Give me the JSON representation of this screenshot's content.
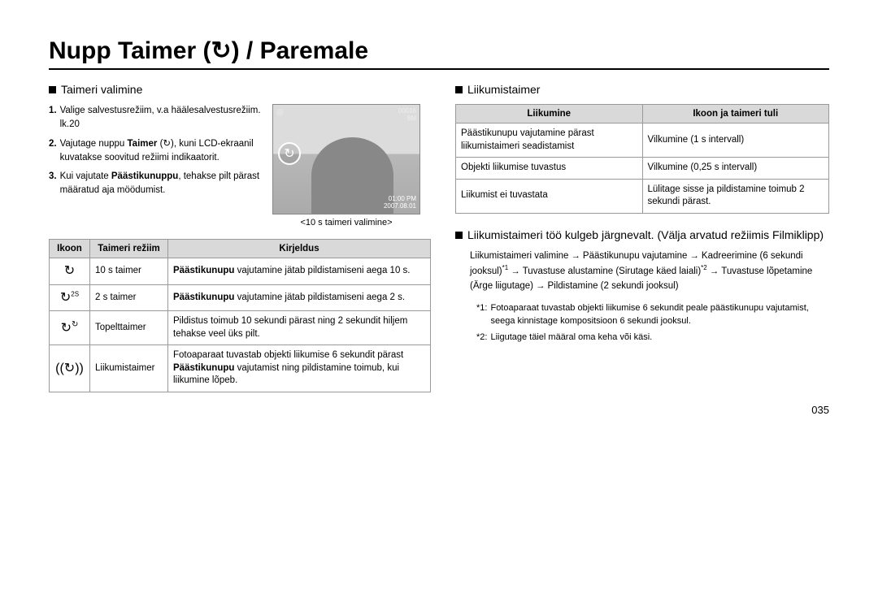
{
  "page_title": "Nupp Taimer (↻) / Paremale",
  "page_number": "035",
  "left": {
    "section_title": "Taimeri valimine",
    "instructions": [
      {
        "num": "1.",
        "text_parts": [
          {
            "t": "Valige salvestusrežiim, v.a häälesalvestusrežiim. lk.20",
            "b": false
          }
        ]
      },
      {
        "num": "2.",
        "text_parts": [
          {
            "t": "Vajutage nuppu ",
            "b": false
          },
          {
            "t": "Taimer",
            "b": true
          },
          {
            "t": " (↻), kuni LCD-ekraanil kuvatakse soovitud režiimi indikaatorit.",
            "b": false
          }
        ]
      },
      {
        "num": "3.",
        "text_parts": [
          {
            "t": "Kui vajutate ",
            "b": false
          },
          {
            "t": "Päästikunuppu",
            "b": true
          },
          {
            "t": ", tehakse pilt pärast määratud aja möödumist.",
            "b": false
          }
        ]
      }
    ],
    "photo_caption": "<10 s taimeri valimine>",
    "photo_overlay": {
      "top_right_1": "00016",
      "top_right_2": "8M",
      "time": "01:00 PM",
      "date": "2007.08.01"
    },
    "table": {
      "columns": [
        "Ikoon",
        "Taimeri režiim",
        "Kirjeldus"
      ],
      "rows": [
        {
          "icon_type": "timer10",
          "mode": "10 s taimer",
          "desc_parts": [
            {
              "t": "Päästikunupu",
              "b": true
            },
            {
              "t": " vajutamine jätab pildistamiseni aega 10 s.",
              "b": false
            }
          ]
        },
        {
          "icon_type": "timer2",
          "mode": "2 s taimer",
          "desc_parts": [
            {
              "t": "Päästikunupu",
              "b": true
            },
            {
              "t": " vajutamine jätab pildistamiseni aega 2 s.",
              "b": false
            }
          ]
        },
        {
          "icon_type": "timer-double",
          "mode": "Topelttaimer",
          "desc_parts": [
            {
              "t": "Pildistus toimub 10 sekundi pärast ning 2 sekundit hiljem tehakse veel üks pilt.",
              "b": false
            }
          ]
        },
        {
          "icon_type": "timer-motion",
          "mode": "Liikumistaimer",
          "desc_parts": [
            {
              "t": "Fotoaparaat tuvastab objekti liikumise 6 sekundit pärast ",
              "b": false
            },
            {
              "t": "Päästikunupu",
              "b": true
            },
            {
              "t": " vajutamist ning pildistamine toimub, kui liikumine lõpeb.",
              "b": false
            }
          ]
        }
      ]
    }
  },
  "right": {
    "section1_title": "Liikumistaimer",
    "table2": {
      "columns": [
        "Liikumine",
        "Ikoon ja taimeri tuli"
      ],
      "rows": [
        [
          "Päästikunupu vajutamine pärast liikumistaimeri seadistamist",
          "Vilkumine (1 s intervall)"
        ],
        [
          "Objekti liikumise tuvastus",
          "Vilkumine (0,25 s intervall)"
        ],
        [
          "Liikumist ei tuvastata",
          "Lülitage sisse ja pildistamine toimub 2 sekundi pärast."
        ]
      ]
    },
    "section2_title": "Liikumistaimeri töö kulgeb järgnevalt. (Välja arvatud režiimis Filmiklipp)",
    "flow": [
      {
        "t": "Liikumistaimeri valimine"
      },
      {
        "arrow": true
      },
      {
        "t": "Päästikunupu vajutamine"
      },
      {
        "arrow": true
      },
      {
        "t": "Kadreerimine (6 sekundi jooksul)",
        "sup": "*1"
      },
      {
        "arrow": true
      },
      {
        "t": "Tuvastuse alustamine (Sirutage käed laiali)",
        "sup": "*2"
      },
      {
        "arrow": true
      },
      {
        "t": "Tuvastuse lõpetamine (Ärge liigutage)"
      },
      {
        "arrow": true
      },
      {
        "t": "Pildistamine (2 sekundi jooksul)"
      }
    ],
    "footnotes": [
      {
        "tag": "*1:",
        "text": "Fotoaparaat tuvastab objekti liikumise 6 sekundit peale päästikunupu vajutamist, seega kinnistage kompositsioon 6 sekundi jooksul."
      },
      {
        "tag": "*2:",
        "text": "Liigutage täiel määral oma keha või käsi."
      }
    ]
  }
}
